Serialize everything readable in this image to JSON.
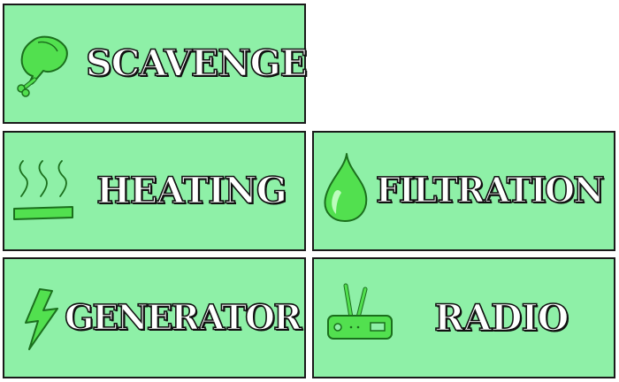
{
  "tiles": [
    {
      "id": "scavenge",
      "label": "SCAVENGE",
      "icon": "drumstick-icon"
    },
    {
      "id": "heating",
      "label": "HEATING",
      "icon": "heat-waves-icon"
    },
    {
      "id": "filtration",
      "label": "FILTRATION",
      "icon": "water-drop-icon"
    },
    {
      "id": "generator",
      "label": "GENERATOR",
      "icon": "lightning-bolt-icon"
    },
    {
      "id": "radio",
      "label": "RADIO",
      "icon": "radio-icon"
    }
  ],
  "colors": {
    "tile_background": "#8ef0a7",
    "tile_border": "#1a1a1a",
    "icon_fill": "#52e04f",
    "icon_stroke": "#1b6f1d",
    "label_fill": "#ffffff",
    "label_outline": "#111111"
  }
}
